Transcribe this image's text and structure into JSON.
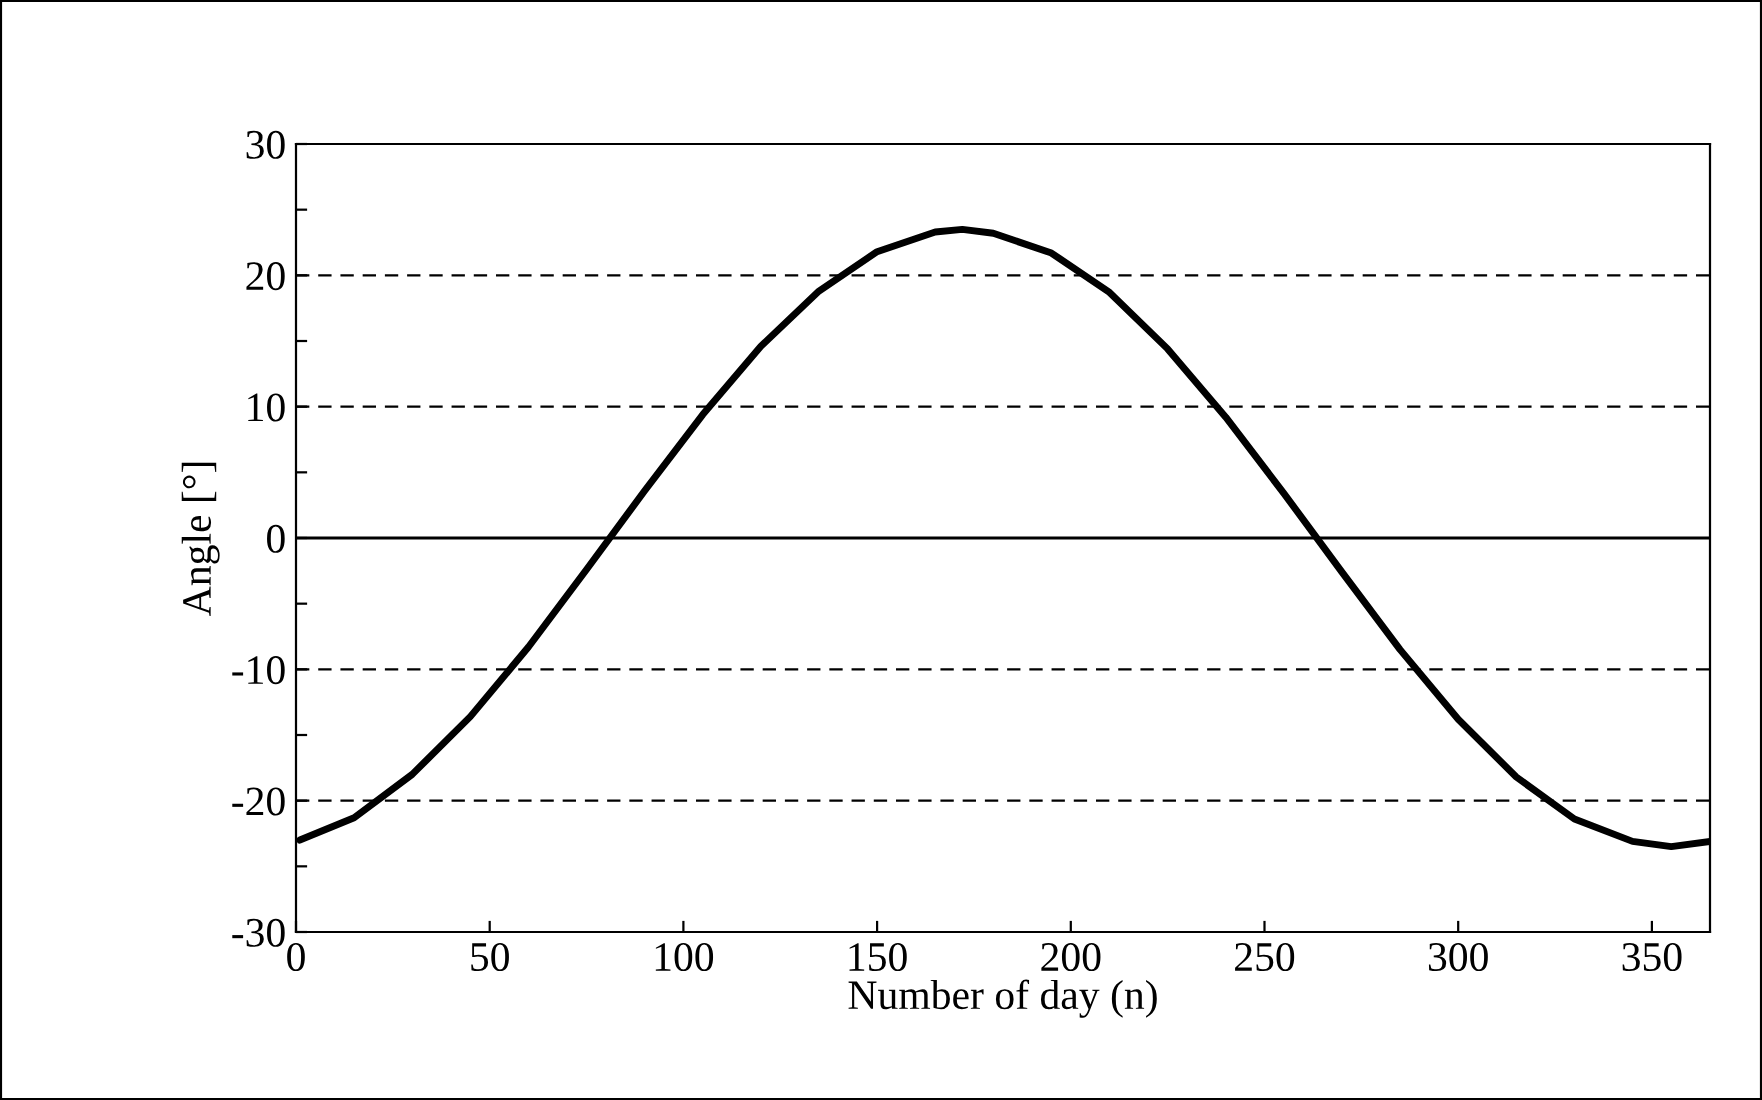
{
  "chart_data": {
    "type": "line",
    "xlabel": "Number of day (n)",
    "ylabel": "Angle [°]",
    "x": [
      1,
      15,
      30,
      45,
      60,
      75,
      90,
      105,
      120,
      135,
      150,
      165,
      172,
      180,
      195,
      210,
      225,
      240,
      255,
      270,
      285,
      300,
      315,
      330,
      345,
      355,
      365
    ],
    "series": [
      {
        "color": "#000000",
        "values": [
          -23.0,
          -21.3,
          -18.0,
          -13.6,
          -8.3,
          -2.4,
          3.6,
          9.4,
          14.6,
          18.8,
          21.8,
          23.3,
          23.5,
          23.2,
          21.7,
          18.7,
          14.4,
          9.2,
          3.4,
          -2.6,
          -8.5,
          -13.8,
          -18.2,
          -21.4,
          -23.1,
          -23.5,
          -23.1
        ]
      }
    ],
    "xlim": [
      0,
      365
    ],
    "xticks": [
      0,
      50,
      100,
      150,
      200,
      250,
      300,
      350
    ],
    "ylim": [
      -30,
      30
    ],
    "yticks": [
      -30,
      {
        "value": -25,
        "label": null
      },
      -20,
      {
        "value": -15,
        "label": null
      },
      -10,
      {
        "value": -5,
        "label": null
      },
      0,
      {
        "value": 5,
        "label": null
      },
      10,
      {
        "value": 15,
        "label": null
      },
      20,
      {
        "value": 25,
        "label": null
      },
      30
    ],
    "grid": "y",
    "line_style": "solid",
    "marker": "none",
    "ref_lines": [
      {
        "axis": "y",
        "value": 0,
        "color": "#000000",
        "line_style": "solid"
      }
    ]
  }
}
